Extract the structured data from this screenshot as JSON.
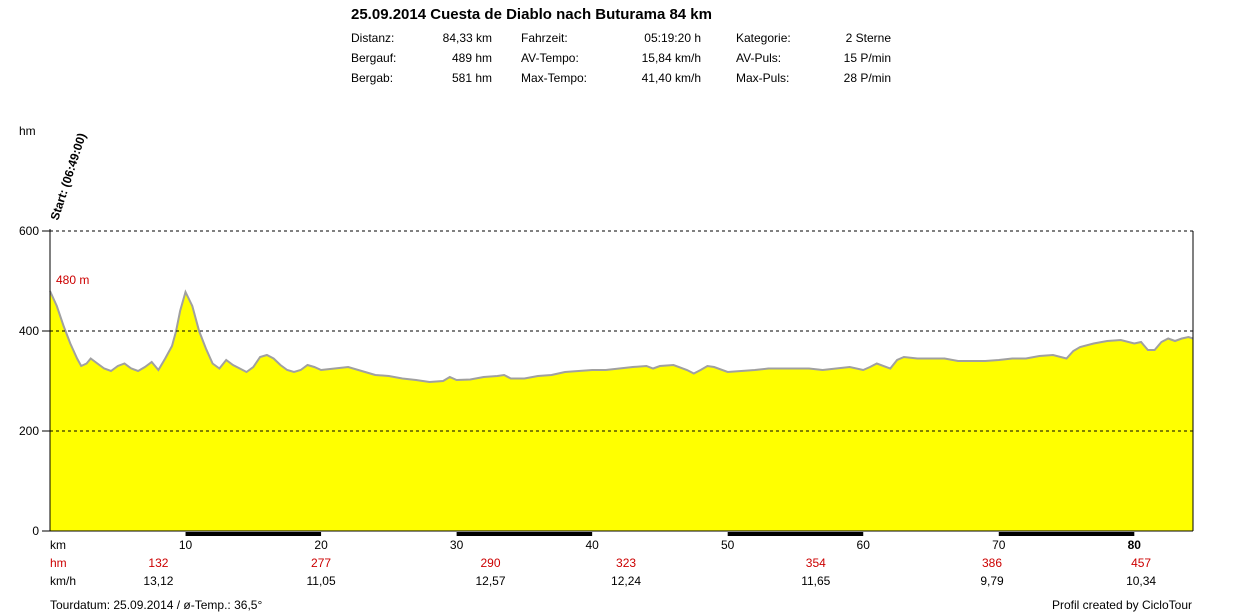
{
  "title": "25.09.2014 Cuesta de Diablo nach Buturama 84 km",
  "stats": [
    {
      "label": "Distanz:",
      "value": "84,33 km"
    },
    {
      "label": "Bergauf:",
      "value": "489 hm"
    },
    {
      "label": "Bergab:",
      "value": "581 hm"
    },
    {
      "label": "Fahrzeit:",
      "value": "05:19:20 h"
    },
    {
      "label": "AV-Tempo:",
      "value": "15,84 km/h"
    },
    {
      "label": "Max-Tempo:",
      "value": "41,40 km/h"
    },
    {
      "label": "Kategorie:",
      "value": "2 Sterne"
    },
    {
      "label": "AV-Puls:",
      "value": "15 P/min"
    },
    {
      "label": "Max-Puls:",
      "value": "28 P/min"
    }
  ],
  "footer": {
    "left": "Tourdatum: 25.09.2014  /  ø-Temp.: 36,5°",
    "right": "Profil created by CicloTour"
  },
  "colors": {
    "fill": "#ffff00",
    "outline": "#a0a0a0",
    "annotation_red": "#cc0000",
    "grid": "#000000"
  },
  "chart_data": {
    "type": "area",
    "ylabel": "hm",
    "ylim": [
      0,
      600
    ],
    "y_ticks": [
      0,
      200,
      400,
      600
    ],
    "xlim": [
      0,
      84.33
    ],
    "x_ticks": [
      10,
      20,
      30,
      40,
      50,
      60,
      70,
      80
    ],
    "grid_dashed_at": [
      200,
      400,
      600
    ],
    "start_label": "Start: (06:49:00)",
    "start_value_label": "480 m",
    "x": [
      0,
      0.5,
      1,
      1.5,
      2,
      2.3,
      2.7,
      3,
      3.5,
      4,
      4.5,
      5,
      5.5,
      6,
      6.5,
      7,
      7.5,
      8,
      8.5,
      9,
      9.3,
      9.6,
      10,
      10.5,
      11,
      11.5,
      12,
      12.5,
      13,
      13.5,
      14,
      14.5,
      15,
      15.5,
      16,
      16.5,
      17,
      17.5,
      18,
      18.5,
      19,
      19.5,
      20,
      21,
      22,
      23,
      24,
      25,
      26,
      27,
      28,
      29,
      29.5,
      30,
      31,
      32,
      33,
      33.5,
      34,
      35,
      36,
      37,
      38,
      39,
      40,
      41,
      42,
      43,
      44,
      44.5,
      45,
      46,
      47,
      47.5,
      48,
      48.5,
      49,
      50,
      51,
      52,
      53,
      54,
      55,
      56,
      57,
      58,
      59,
      60,
      60.5,
      61,
      62,
      62.5,
      63,
      64,
      65,
      66,
      67,
      68,
      69,
      70,
      71,
      72,
      73,
      74,
      75,
      75.5,
      76,
      77,
      78,
      79,
      80,
      80.5,
      81,
      81.5,
      82,
      82.5,
      83,
      83.5,
      84,
      84.33
    ],
    "values": [
      480,
      450,
      410,
      375,
      345,
      330,
      335,
      345,
      335,
      325,
      320,
      330,
      335,
      325,
      320,
      328,
      338,
      322,
      345,
      370,
      400,
      440,
      478,
      450,
      400,
      365,
      335,
      325,
      342,
      332,
      325,
      318,
      328,
      348,
      352,
      345,
      332,
      322,
      318,
      322,
      332,
      328,
      322,
      325,
      328,
      320,
      312,
      310,
      305,
      302,
      298,
      300,
      308,
      302,
      303,
      308,
      310,
      312,
      305,
      305,
      310,
      312,
      318,
      320,
      322,
      322,
      325,
      328,
      330,
      325,
      330,
      332,
      322,
      315,
      322,
      330,
      328,
      318,
      320,
      322,
      325,
      325,
      325,
      325,
      322,
      325,
      328,
      322,
      328,
      335,
      325,
      342,
      348,
      345,
      345,
      345,
      340,
      340,
      340,
      342,
      345,
      345,
      350,
      352,
      345,
      360,
      368,
      375,
      380,
      382,
      375,
      378,
      362,
      362,
      378,
      385,
      380,
      385,
      388,
      385
    ]
  },
  "rows": {
    "km": {
      "label": "km",
      "cols": [
        {
          "x": 10,
          "text": "10"
        },
        {
          "x": 20,
          "text": "20"
        },
        {
          "x": 30,
          "text": "30"
        },
        {
          "x": 40,
          "text": "40"
        },
        {
          "x": 50,
          "text": "50"
        },
        {
          "x": 60,
          "text": "60"
        },
        {
          "x": 70,
          "text": "70"
        },
        {
          "x": 80,
          "text": "80"
        }
      ]
    },
    "hm": {
      "label": "hm",
      "cols": [
        {
          "x": 8,
          "text": "132"
        },
        {
          "x": 20,
          "text": "277"
        },
        {
          "x": 32.5,
          "text": "290"
        },
        {
          "x": 42.5,
          "text": "323"
        },
        {
          "x": 56.5,
          "text": "354"
        },
        {
          "x": 69.5,
          "text": "386"
        },
        {
          "x": 80.5,
          "text": "457"
        }
      ]
    },
    "kmh": {
      "label": "km/h",
      "cols": [
        {
          "x": 8,
          "text": "13,12"
        },
        {
          "x": 20,
          "text": "11,05"
        },
        {
          "x": 32.5,
          "text": "12,57"
        },
        {
          "x": 42.5,
          "text": "12,24"
        },
        {
          "x": 56.5,
          "text": "11,65"
        },
        {
          "x": 69.5,
          "text": "9,79"
        },
        {
          "x": 80.5,
          "text": "10,34"
        }
      ]
    }
  }
}
